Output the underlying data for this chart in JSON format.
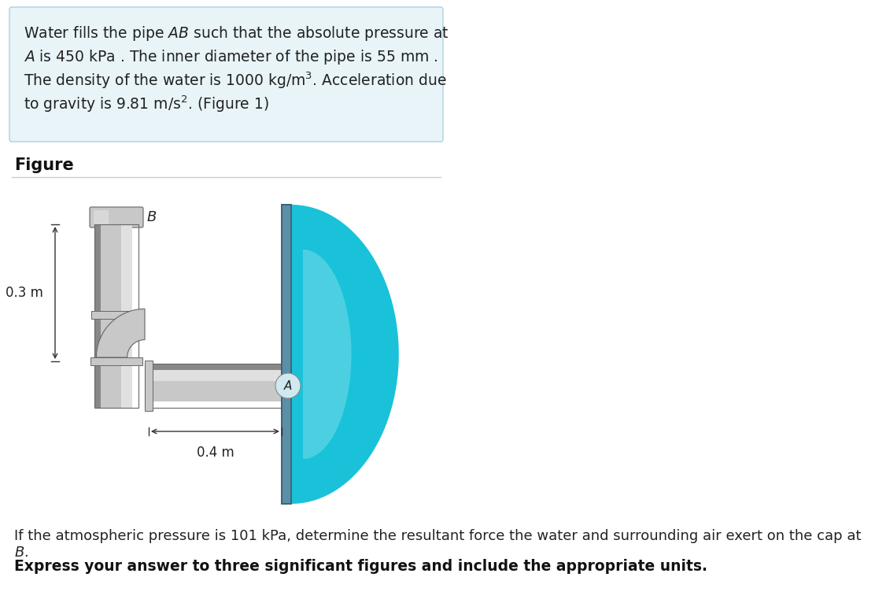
{
  "bg_color": "#ffffff",
  "info_box_bg": "#e8f4f8",
  "info_box_border": "#b0d0e0",
  "info_text_lines": [
    "Water fills the pipe $AB$ such that the absolute pressure at",
    "$A$ is 450 kPa . The inner diameter of the pipe is 55 mm .",
    "The density of the water is 1000 kg/m$^3$. Acceleration due",
    "to gravity is 9.81 m/s$^2$. (Figure 1)"
  ],
  "figure_label": "Figure",
  "pipe_color_light": "#c8c8c8",
  "pipe_color_mid": "#a8a8a8",
  "pipe_color_dark": "#888888",
  "pipe_color_highlight": "#e0e0e0",
  "water_color_main": "#00bcd4",
  "water_color_light": "#80deea",
  "water_color_dark": "#0097a7",
  "wall_color": "#5b8fa8",
  "cap_color": "#b0c8d8",
  "question_text": "If the atmospheric pressure is 101 kPa, determine the resultant force the water and surrounding air exert on the cap at $B$.",
  "bold_text": "Express your answer to three significant figures and include the appropriate units.",
  "dim_03": "0.3 m",
  "dim_04": "0.4 m",
  "label_A": "$A$",
  "label_B": "$B$"
}
